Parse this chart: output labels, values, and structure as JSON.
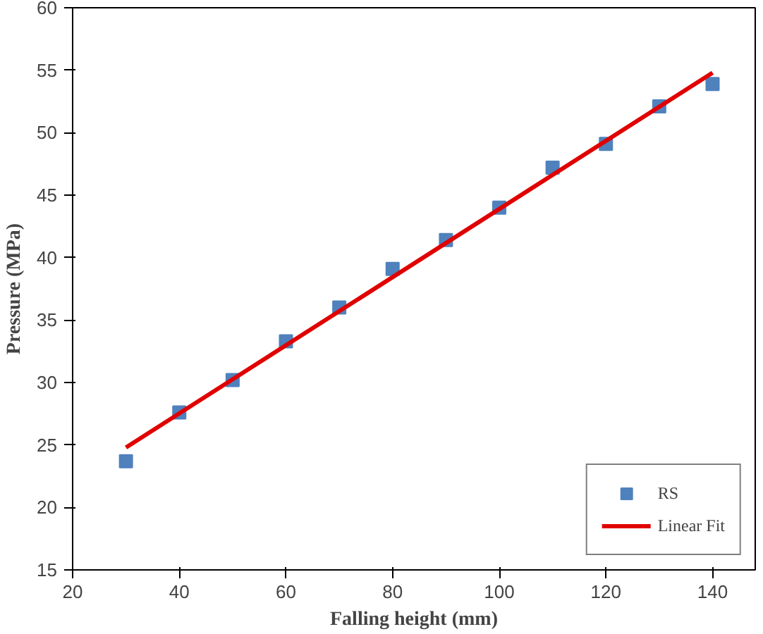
{
  "chart_data": {
    "type": "scatter",
    "xlabel": "Falling height (mm)",
    "ylabel": "Pressure (MPa)",
    "xlim": [
      20,
      148
    ],
    "ylim": [
      15,
      60
    ],
    "xticks": [
      20,
      40,
      60,
      80,
      100,
      120,
      140
    ],
    "yticks": [
      15,
      20,
      25,
      30,
      35,
      40,
      45,
      50,
      55,
      60
    ],
    "grid": false,
    "legend": "bottom right",
    "series": [
      {
        "name": "RS",
        "marker": "square",
        "color": "#4f81bd",
        "x": [
          30,
          40,
          50,
          60,
          70,
          80,
          90,
          100,
          110,
          120,
          130,
          140
        ],
        "values": [
          23.7,
          27.6,
          30.2,
          33.3,
          36.0,
          39.1,
          41.4,
          44.0,
          47.2,
          49.1,
          52.1,
          53.9
        ]
      },
      {
        "name": "Linear Fit",
        "type": "line",
        "color": "#e00000",
        "x": [
          30,
          140
        ],
        "values": [
          24.8,
          54.8
        ]
      }
    ]
  }
}
